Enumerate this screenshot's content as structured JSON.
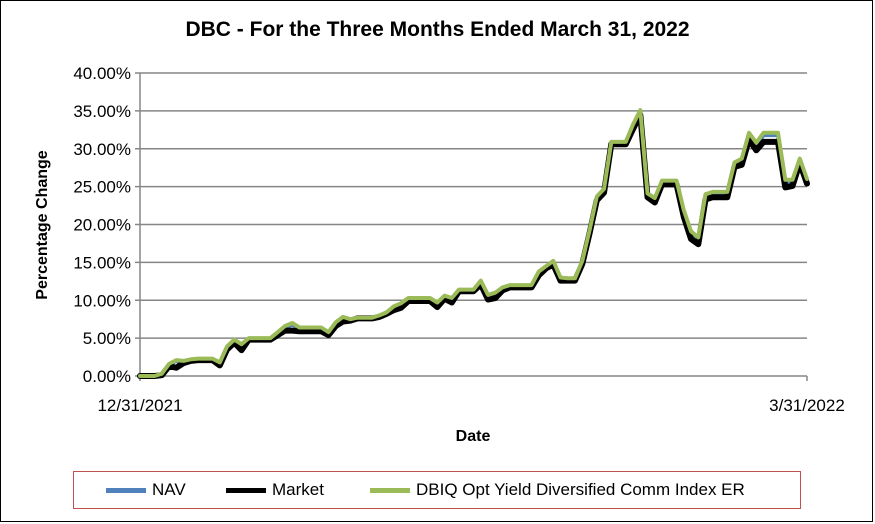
{
  "chart_data": {
    "type": "line",
    "title": "DBC - For the Three Months Ended March 31, 2022",
    "xlabel": "Date",
    "ylabel": "Percentage Change",
    "x_tick_labels": [
      "12/31/2021",
      "3/31/2022"
    ],
    "y_ticks": [
      0,
      5,
      10,
      15,
      20,
      25,
      30,
      35,
      40
    ],
    "y_tick_labels": [
      "0.00%",
      "5.00%",
      "10.00%",
      "15.00%",
      "20.00%",
      "25.00%",
      "30.00%",
      "35.00%",
      "40.00%"
    ],
    "ylim": [
      0,
      40
    ],
    "grid": "horizontal",
    "legend_position": "bottom",
    "series": [
      {
        "name": "NAV",
        "color": "#4f81bd",
        "values": [
          0.0,
          0.0,
          0.0,
          0.2,
          1.5,
          2.0,
          1.6,
          2.0,
          2.2,
          2.2,
          2.2,
          1.6,
          3.7,
          4.6,
          3.8,
          4.9,
          4.9,
          4.9,
          4.9,
          5.6,
          6.4,
          6.8,
          6.2,
          6.2,
          6.2,
          6.2,
          5.6,
          6.9,
          7.5,
          7.4,
          7.6,
          7.6,
          7.6,
          7.9,
          8.3,
          9.1,
          9.4,
          10.2,
          10.2,
          10.2,
          10.2,
          9.4,
          10.4,
          10.0,
          11.3,
          11.3,
          11.3,
          12.4,
          10.4,
          10.7,
          11.5,
          11.9,
          11.9,
          11.9,
          11.9,
          13.7,
          14.4,
          15.0,
          12.9,
          12.8,
          12.8,
          15.0,
          19.0,
          23.5,
          24.5,
          30.8,
          30.8,
          30.8,
          33.0,
          34.9,
          23.9,
          23.2,
          25.5,
          25.5,
          25.5,
          21.5,
          18.6,
          17.8,
          23.8,
          24.0,
          24.0,
          24.0,
          28.0,
          28.4,
          31.8,
          30.4,
          31.8,
          31.8,
          31.8,
          25.5,
          25.5,
          28.5,
          25.8
        ]
      },
      {
        "name": "Market",
        "color": "#000000",
        "values": [
          0.0,
          0.0,
          0.0,
          0.1,
          1.3,
          1.1,
          1.7,
          2.0,
          2.1,
          2.1,
          2.1,
          1.4,
          3.5,
          4.4,
          3.4,
          4.8,
          4.8,
          4.8,
          4.8,
          5.4,
          6.0,
          6.0,
          5.9,
          5.9,
          5.9,
          5.9,
          5.4,
          6.6,
          7.2,
          7.3,
          7.6,
          7.6,
          7.6,
          7.8,
          8.2,
          8.7,
          9.0,
          9.9,
          9.9,
          9.9,
          9.9,
          9.1,
          10.2,
          9.7,
          11.2,
          11.2,
          11.2,
          12.1,
          10.1,
          10.3,
          11.3,
          11.7,
          11.7,
          11.7,
          11.7,
          13.3,
          14.2,
          14.7,
          12.6,
          12.6,
          12.6,
          14.8,
          18.8,
          23.2,
          24.2,
          30.6,
          30.6,
          30.6,
          32.6,
          34.5,
          23.6,
          22.9,
          25.3,
          25.3,
          25.3,
          21.0,
          18.1,
          17.4,
          23.3,
          23.6,
          23.6,
          23.6,
          27.6,
          27.9,
          31.2,
          29.8,
          30.9,
          30.9,
          30.9,
          24.9,
          25.1,
          28.1,
          25.4
        ]
      },
      {
        "name": "DBIQ Opt Yield Diversified Comm Index ER",
        "color": "#9bbb59",
        "values": [
          0.0,
          0.0,
          0.0,
          0.3,
          1.6,
          2.1,
          2.0,
          2.2,
          2.3,
          2.3,
          2.3,
          1.8,
          3.9,
          4.8,
          4.2,
          5.0,
          5.0,
          5.0,
          5.0,
          5.8,
          6.6,
          7.0,
          6.4,
          6.4,
          6.4,
          6.4,
          5.8,
          7.1,
          7.8,
          7.5,
          7.7,
          7.7,
          7.7,
          8.0,
          8.4,
          9.2,
          9.6,
          10.3,
          10.3,
          10.3,
          10.3,
          9.7,
          10.6,
          10.3,
          11.4,
          11.4,
          11.4,
          12.6,
          10.7,
          11.0,
          11.7,
          12.0,
          12.0,
          12.0,
          12.0,
          13.8,
          14.5,
          15.2,
          13.0,
          12.9,
          12.9,
          15.2,
          19.2,
          23.7,
          24.7,
          30.9,
          30.9,
          30.9,
          33.2,
          35.1,
          24.1,
          23.5,
          25.8,
          25.8,
          25.8,
          21.9,
          19.1,
          18.3,
          24.0,
          24.3,
          24.3,
          24.3,
          28.2,
          28.7,
          32.1,
          30.8,
          32.1,
          32.1,
          32.1,
          25.9,
          25.9,
          28.7,
          26.0
        ]
      }
    ]
  }
}
